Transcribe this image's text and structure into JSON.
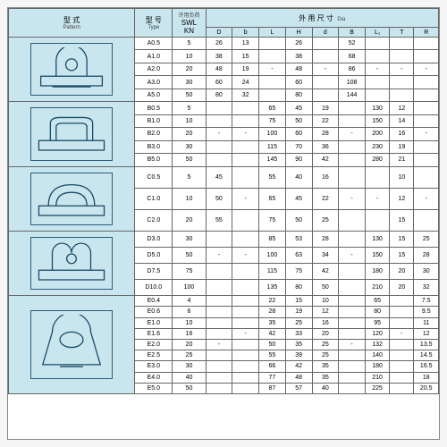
{
  "colors": {
    "header_bg": "#c9e6ef",
    "border": "#666666",
    "text": "#222222",
    "diagram_stroke": "#1a4a66"
  },
  "headers": {
    "pattern_cn": "型 式",
    "pattern_en": "Pattern",
    "type_cn": "型 号",
    "type_en": "Type",
    "swl_cn": "许用负荷",
    "swl_en1": "SWL",
    "swl_en2": "KN",
    "dia_cn": "外 用 尺 寸",
    "dia_en": "Dia",
    "cols": {
      "D": "D",
      "b": "b",
      "L": "L",
      "H": "H",
      "d": "d",
      "B": "B",
      "L1": "L₁",
      "T": "T",
      "R": "R"
    }
  },
  "sections": {
    "A": {
      "rows": [
        {
          "type": "A0.5",
          "swl": "5",
          "D": "26",
          "b": "13",
          "L": "",
          "H": "26",
          "d": "",
          "B": "52",
          "L1": "",
          "T": "",
          "R": ""
        },
        {
          "type": "A1.0",
          "swl": "10",
          "D": "38",
          "b": "15",
          "L": "",
          "H": "38",
          "d": "",
          "B": "68",
          "L1": "",
          "T": "",
          "R": ""
        },
        {
          "type": "A2.0",
          "swl": "20",
          "D": "48",
          "b": "19",
          "L": "-",
          "H": "48",
          "d": "-",
          "B": "86",
          "L1": "-",
          "T": "-",
          "R": "-"
        },
        {
          "type": "A3.0",
          "swl": "30",
          "D": "60",
          "b": "24",
          "L": "",
          "H": "60",
          "d": "",
          "B": "108",
          "L1": "",
          "T": "",
          "R": ""
        },
        {
          "type": "A5.0",
          "swl": "50",
          "D": "80",
          "b": "32",
          "L": "",
          "H": "80",
          "d": "",
          "B": "144",
          "L1": "",
          "T": "",
          "R": ""
        }
      ]
    },
    "B": {
      "rows": [
        {
          "type": "B0.5",
          "swl": "5",
          "D": "",
          "b": "",
          "L": "65",
          "H": "45",
          "d": "19",
          "B": "",
          "L1": "130",
          "T": "12",
          "R": ""
        },
        {
          "type": "B1.0",
          "swl": "10",
          "D": "",
          "b": "",
          "L": "75",
          "H": "50",
          "d": "22",
          "B": "",
          "L1": "150",
          "T": "14",
          "R": ""
        },
        {
          "type": "B2.0",
          "swl": "20",
          "D": "-",
          "b": "-",
          "L": "100",
          "H": "60",
          "d": "28",
          "B": "-",
          "L1": "200",
          "T": "16",
          "R": "-"
        },
        {
          "type": "B3.0",
          "swl": "30",
          "D": "",
          "b": "",
          "L": "115",
          "H": "70",
          "d": "36",
          "B": "",
          "L1": "230",
          "T": "19",
          "R": ""
        },
        {
          "type": "B5.0",
          "swl": "50",
          "D": "",
          "b": "",
          "L": "145",
          "H": "90",
          "d": "42",
          "B": "",
          "L1": "280",
          "T": "21",
          "R": ""
        }
      ]
    },
    "C": {
      "rows": [
        {
          "type": "C0.5",
          "swl": "5",
          "D": "45",
          "b": "",
          "L": "55",
          "H": "40",
          "d": "16",
          "B": "",
          "L1": "",
          "T": "10",
          "R": ""
        },
        {
          "type": "C1.0",
          "swl": "10",
          "D": "50",
          "b": "-",
          "L": "65",
          "H": "45",
          "d": "22",
          "B": "-",
          "L1": "-",
          "T": "12",
          "R": "-"
        },
        {
          "type": "C2.0",
          "swl": "20",
          "D": "55",
          "b": "",
          "L": "75",
          "H": "50",
          "d": "25",
          "B": "",
          "L1": "",
          "T": "15",
          "R": ""
        }
      ]
    },
    "D": {
      "rows": [
        {
          "type": "D3.0",
          "swl": "30",
          "D": "",
          "b": "",
          "L": "85",
          "H": "53",
          "d": "28",
          "B": "",
          "L1": "130",
          "T": "15",
          "R": "25"
        },
        {
          "type": "D5.0",
          "swl": "50",
          "D": "-",
          "b": "-",
          "L": "100",
          "H": "63",
          "d": "34",
          "B": "-",
          "L1": "150",
          "T": "15",
          "R": "28"
        },
        {
          "type": "D7.5",
          "swl": "75",
          "D": "",
          "b": "",
          "L": "115",
          "H": "75",
          "d": "42",
          "B": "",
          "L1": "180",
          "T": "20",
          "R": "30"
        },
        {
          "type": "D10.0",
          "swl": "100",
          "D": "",
          "b": "",
          "L": "135",
          "H": "80",
          "d": "50",
          "B": "",
          "L1": "210",
          "T": "20",
          "R": "32"
        }
      ]
    },
    "E": {
      "rows": [
        {
          "type": "E0.4",
          "swl": "4",
          "D": "",
          "b": "",
          "L": "22",
          "H": "15",
          "d": "10",
          "B": "",
          "L1": "65",
          "T": "",
          "R": "7.5"
        },
        {
          "type": "E0.6",
          "swl": "6",
          "D": "",
          "b": "",
          "L": "28",
          "H": "19",
          "d": "12",
          "B": "",
          "L1": "80",
          "T": "",
          "R": "9.5"
        },
        {
          "type": "E1.0",
          "swl": "10",
          "D": "",
          "b": "",
          "L": "35",
          "H": "25",
          "d": "16",
          "B": "",
          "L1": "95",
          "T": "",
          "R": "11"
        },
        {
          "type": "E1.6",
          "swl": "16",
          "D": "",
          "b": "-",
          "L": "42",
          "H": "33",
          "d": "20",
          "B": "",
          "L1": "120",
          "T": "-",
          "R": "12"
        },
        {
          "type": "E2.0",
          "swl": "20",
          "D": "-",
          "b": "",
          "L": "50",
          "H": "35",
          "d": "25",
          "B": "-",
          "L1": "132",
          "T": "",
          "R": "13.5"
        },
        {
          "type": "E2.5",
          "swl": "25",
          "D": "",
          "b": "",
          "L": "55",
          "H": "39",
          "d": "25",
          "B": "",
          "L1": "140",
          "T": "",
          "R": "14.5"
        },
        {
          "type": "E3.0",
          "swl": "30",
          "D": "",
          "b": "",
          "L": "66",
          "H": "42",
          "d": "35",
          "B": "",
          "L1": "180",
          "T": "",
          "R": "16.5"
        },
        {
          "type": "E4.0",
          "swl": "40",
          "D": "",
          "b": "",
          "L": "77",
          "H": "48",
          "d": "35",
          "B": "",
          "L1": "210",
          "T": "",
          "R": "18"
        },
        {
          "type": "E5.0",
          "swl": "50",
          "D": "",
          "b": "",
          "L": "87",
          "H": "57",
          "d": "40",
          "B": "",
          "L1": "225",
          "T": "",
          "R": "20.5"
        }
      ]
    }
  }
}
